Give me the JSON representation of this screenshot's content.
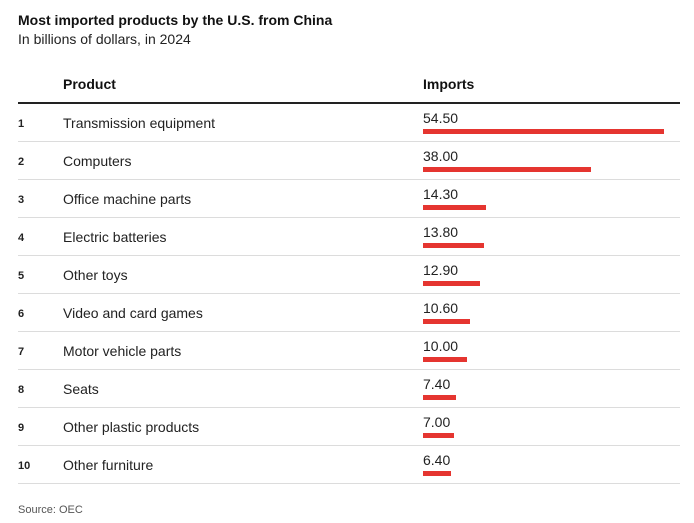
{
  "title": "Most imported products by the U.S. from China",
  "subtitle": "In billions of dollars, in 2024",
  "columns": {
    "product": "Product",
    "imports": "Imports"
  },
  "source": "Source: OEC",
  "colors": {
    "bar": "#e53530"
  },
  "chart_data": {
    "type": "table",
    "title": "Most imported products by the U.S. from China",
    "subtitle": "In billions of dollars, in 2024",
    "rows": [
      {
        "rank": "1",
        "product": "Transmission equipment",
        "value": 54.5,
        "label": "54.50"
      },
      {
        "rank": "2",
        "product": "Computers",
        "value": 38.0,
        "label": "38.00"
      },
      {
        "rank": "3",
        "product": "Office machine parts",
        "value": 14.3,
        "label": "14.30"
      },
      {
        "rank": "4",
        "product": "Electric batteries",
        "value": 13.8,
        "label": "13.80"
      },
      {
        "rank": "5",
        "product": "Other toys",
        "value": 12.9,
        "label": "12.90"
      },
      {
        "rank": "6",
        "product": "Video and card games",
        "value": 10.6,
        "label": "10.60"
      },
      {
        "rank": "7",
        "product": "Motor vehicle parts",
        "value": 10.0,
        "label": "10.00"
      },
      {
        "rank": "8",
        "product": "Seats",
        "value": 7.4,
        "label": "7.40"
      },
      {
        "rank": "9",
        "product": "Other plastic products",
        "value": 7.0,
        "label": "7.00"
      },
      {
        "rank": "10",
        "product": "Other furniture",
        "value": 6.4,
        "label": "6.40"
      }
    ]
  }
}
